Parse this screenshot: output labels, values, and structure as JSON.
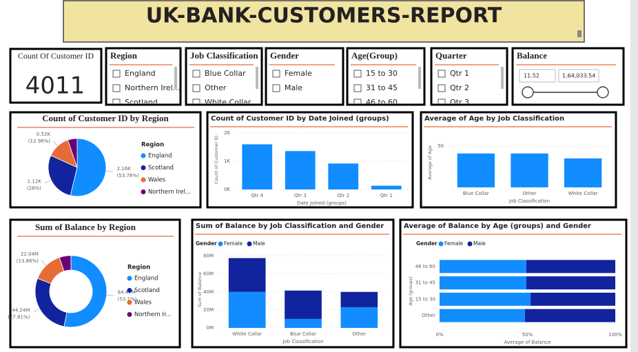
{
  "header": {
    "title": "UK-BANK-CUSTOMERS-REPORT"
  },
  "card": {
    "label": "Count Of Customer ID",
    "value": 4011
  },
  "slicers": [
    {
      "title": "Region",
      "items": [
        "England",
        "Northern Irel...",
        "Scotland"
      ]
    },
    {
      "title": "Job Classification",
      "items": [
        "Blue Collar",
        "Other",
        "White Collar"
      ]
    },
    {
      "title": "Gender",
      "items": [
        "Female",
        "Male"
      ]
    },
    {
      "title": "Age(Group)",
      "items": [
        "15 to 30",
        "31 to 45",
        "46 to 60"
      ]
    },
    {
      "title": "Quarter",
      "items": [
        "Qtr 1",
        "Qtr 2",
        "Qtr 3"
      ]
    }
  ],
  "balance_slicer": {
    "title": "Balance",
    "min": "11.52",
    "max": "1,64,033.54"
  },
  "chart_data": [
    {
      "type": "pie",
      "title": "Count of Customer ID by Region",
      "legend_title": "Region",
      "categories": [
        "England",
        "Scotland",
        "Wales",
        "Northern Irel..."
      ],
      "values": [
        2157,
        1123,
        520,
        211
      ],
      "value_labels": [
        "2.16K",
        "1.12K",
        "0.52K",
        null
      ],
      "percent_labels": [
        "(53.78%)",
        "(28%)",
        "(12.96%)",
        null
      ],
      "colors": [
        "#118DFF",
        "#12239E",
        "#E66C37",
        "#6B007B"
      ]
    },
    {
      "type": "bar",
      "title": "Count of Customer ID by Date Joined (groups)",
      "x_label": "Date Joined (groups)",
      "y_label": "Count of Customer ID",
      "categories": [
        "Qtr 4",
        "Qtr 3",
        "Qtr 2",
        "Qtr 1"
      ],
      "values": [
        1600,
        1360,
        920,
        131
      ],
      "color": "#118DFF",
      "ylim": [
        0,
        2100
      ],
      "yticks": [
        {
          "value": 0,
          "label": "0K"
        },
        {
          "value": 1000,
          "label": "1K"
        },
        {
          "value": 2000,
          "label": "2K"
        }
      ],
      "grid": true
    },
    {
      "type": "bar",
      "title": "Average of Age by Job Classification",
      "x_label": "Job Classification",
      "y_label": "Average of Age",
      "categories": [
        "Blue Collar",
        "Other",
        "White Collar"
      ],
      "values": [
        41,
        41,
        35
      ],
      "color": "#118DFF",
      "ylim": [
        0,
        60
      ],
      "yticks": [
        50
      ],
      "grid": true
    },
    {
      "type": "donut",
      "title": "Sum of Balance by Region",
      "legend_title": "Region",
      "categories": [
        "England",
        "Scotland",
        "Wales",
        "Northern Ir..."
      ],
      "values": [
        84.47,
        44.24,
        22.04,
        8.33
      ],
      "value_labels": [
        "84.47M",
        "44.24M",
        "22.04M",
        null
      ],
      "percent_labels": [
        "(53.1%)",
        "(27.81%)",
        "(13.86%)",
        null
      ],
      "colors": [
        "#118DFF",
        "#12239E",
        "#E66C37",
        "#6B007B"
      ]
    },
    {
      "type": "stacked_bar",
      "title": "Sum of Balance by Job Classification and Gender",
      "legend_title": "Gender",
      "x_label": "Job Classification",
      "y_label": "Sum of Balance",
      "categories": [
        "White Collar",
        "Blue Collar",
        "Other"
      ],
      "series": [
        {
          "name": "Female",
          "color": "#118DFF",
          "values": [
            40,
            10,
            23
          ]
        },
        {
          "name": "Male",
          "color": "#12239E",
          "values": [
            37.6,
            31.5,
            17
          ]
        }
      ],
      "ylim": [
        0,
        85
      ],
      "yticks": [
        {
          "value": 0,
          "label": "0M"
        },
        {
          "value": 20,
          "label": "20M"
        },
        {
          "value": 40,
          "label": "40M"
        },
        {
          "value": 60,
          "label": "60M"
        },
        {
          "value": 80,
          "label": "80M"
        }
      ],
      "grid": true
    },
    {
      "type": "stacked_hbar",
      "title": "Average of Balance by Age (groups) and Gender",
      "legend_title": "Gender",
      "x_label": "Average of Balance",
      "y_label": "Age (groups)",
      "categories": [
        "46 to 60",
        "31 to 45",
        "15 to 30",
        "Other"
      ],
      "series": [
        {
          "name": "Female",
          "color": "#118DFF",
          "values": [
            49.4,
            49.4,
            51.8,
            48.6
          ]
        },
        {
          "name": "Male",
          "color": "#12239E",
          "values": [
            50.6,
            50.6,
            48.2,
            51.4
          ]
        }
      ],
      "xlim": [
        0,
        100
      ],
      "xticks": [
        {
          "value": 0,
          "label": "0%"
        },
        {
          "value": 50,
          "label": "50%"
        },
        {
          "value": 100,
          "label": "100%"
        }
      ],
      "grid": true
    }
  ]
}
